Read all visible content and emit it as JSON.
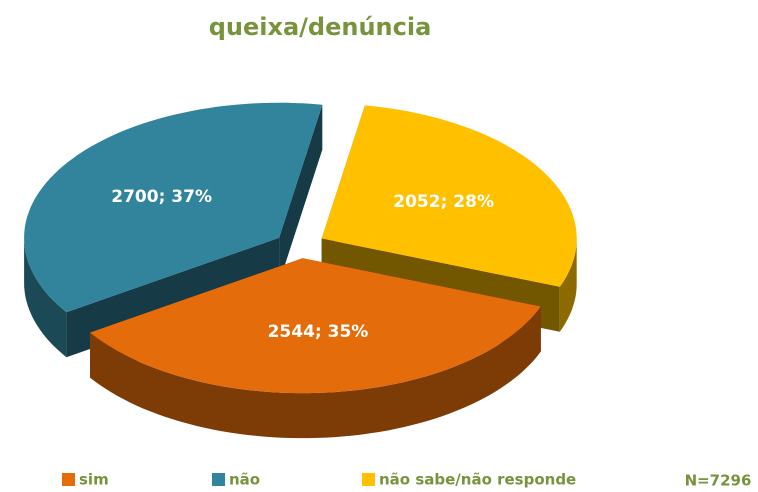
{
  "chart_data": {
    "type": "pie",
    "title": "queixa/denúncia",
    "categories": [
      "sim",
      "não",
      "não sabe/não responde"
    ],
    "values": [
      2544,
      2700,
      2052
    ],
    "value_labels": [
      "2544; 35%",
      "2700; 37%",
      "2052; 28%"
    ],
    "colors": [
      "#e46c0a",
      "#31849b",
      "#ffc000"
    ],
    "annotation": "N=7296",
    "legend": "bottom"
  }
}
